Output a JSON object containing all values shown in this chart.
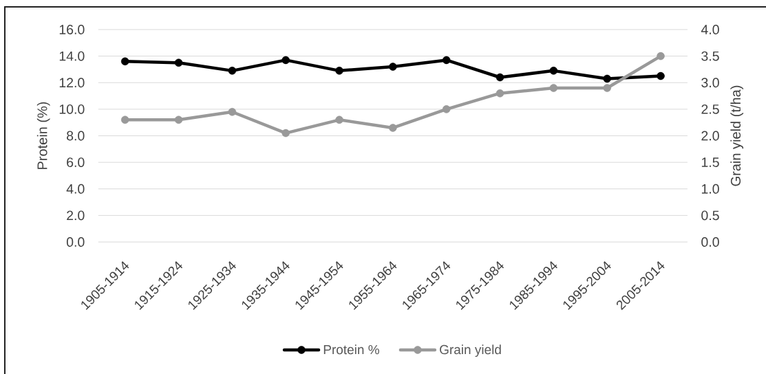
{
  "chart_data": {
    "type": "line",
    "categories": [
      "1905-1914",
      "1915-1924",
      "1925-1934",
      "1935-1944",
      "1945-1954",
      "1955-1964",
      "1965-1974",
      "1975-1984",
      "1985-1994",
      "1995-2004",
      "2005-2014"
    ],
    "series": [
      {
        "name": "Protein %",
        "color": "#000000",
        "values": [
          13.6,
          13.5,
          12.9,
          13.7,
          12.9,
          13.2,
          13.7,
          12.4,
          12.9,
          12.3,
          12.5
        ]
      },
      {
        "name": "Grain yield",
        "color": "#999999",
        "axis": "y2",
        "values": [
          2.3,
          2.3,
          2.45,
          2.05,
          2.3,
          2.15,
          2.5,
          2.8,
          2.9,
          2.9,
          3.5
        ]
      }
    ],
    "ylabel": "Protein (%)",
    "y2label": "Grain yield (t/ha)",
    "ylim": [
      0,
      16
    ],
    "yticks": [
      {
        "value": 0,
        "label": "0.0"
      },
      {
        "value": 2,
        "label": "2.0"
      },
      {
        "value": 4,
        "label": "4.0"
      },
      {
        "value": 6,
        "label": "6.0"
      },
      {
        "value": 8,
        "label": "8.0"
      },
      {
        "value": 10,
        "label": "10.0"
      },
      {
        "value": 12,
        "label": "12.0"
      },
      {
        "value": 14,
        "label": "14.0"
      },
      {
        "value": 16,
        "label": "16.0"
      }
    ],
    "y2lim": [
      0,
      4
    ],
    "y2ticks": [
      {
        "value": 0,
        "label": "0.0"
      },
      0.5,
      {
        "value": 1,
        "label": "1.0"
      },
      1.5,
      {
        "value": 2,
        "label": "2.0"
      },
      2.5,
      {
        "value": 3,
        "label": "3.0"
      },
      3.5,
      {
        "value": 4,
        "label": "4.0"
      }
    ],
    "grid": "y",
    "legend": "bottom",
    "marker": "circle",
    "line_style": "solid"
  }
}
